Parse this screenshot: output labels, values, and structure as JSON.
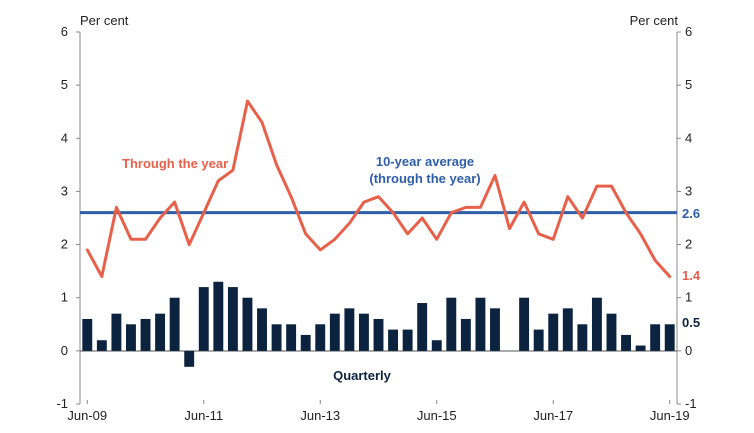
{
  "chart_data": {
    "type": "bar+line",
    "y_unit_left": "Per cent",
    "y_unit_right": "Per cent",
    "ylim": [
      -1,
      6
    ],
    "yticks": [
      -1,
      0,
      1,
      2,
      3,
      4,
      5,
      6
    ],
    "x_tick_labels": [
      "Jun-09",
      "Jun-11",
      "Jun-13",
      "Jun-15",
      "Jun-17",
      "Jun-19"
    ],
    "x_tick_index": [
      0,
      8,
      16,
      24,
      32,
      40
    ],
    "quarters": 41,
    "series": [
      {
        "name": "Quarterly",
        "kind": "bar",
        "color": "#0c2340",
        "values": [
          0.6,
          0.2,
          0.7,
          0.5,
          0.6,
          0.7,
          1.0,
          -0.3,
          1.2,
          1.3,
          1.2,
          1.0,
          0.8,
          0.5,
          0.5,
          0.3,
          0.5,
          0.7,
          0.8,
          0.7,
          0.6,
          0.4,
          0.4,
          0.9,
          0.2,
          1.0,
          0.6,
          1.0,
          0.8,
          0.0,
          1.0,
          0.4,
          0.7,
          0.8,
          0.5,
          1.0,
          0.7,
          0.3,
          0.1,
          0.5,
          0.5
        ]
      },
      {
        "name": "Through the year",
        "kind": "line",
        "color": "#e8604a",
        "values": [
          1.9,
          1.4,
          2.7,
          2.1,
          2.1,
          2.5,
          2.8,
          2.0,
          2.6,
          3.2,
          3.4,
          4.7,
          4.3,
          3.5,
          2.9,
          2.2,
          1.9,
          2.1,
          2.4,
          2.8,
          2.9,
          2.6,
          2.2,
          2.5,
          2.1,
          2.6,
          2.7,
          2.7,
          3.3,
          2.3,
          2.8,
          2.2,
          2.1,
          2.9,
          2.5,
          3.1,
          3.1,
          2.6,
          2.2,
          1.7,
          1.4
        ]
      },
      {
        "name": "10-year average (through the year)",
        "kind": "hline",
        "color": "#2f5ea8",
        "value": 2.6
      }
    ],
    "annotations": {
      "through_the_year": "Through the year",
      "average_line1": "10-year average",
      "average_line2": "(through the year)",
      "quarterly": "Quarterly",
      "end_avg": "2.6",
      "end_line": "1.4",
      "end_bar": "0.5"
    }
  }
}
